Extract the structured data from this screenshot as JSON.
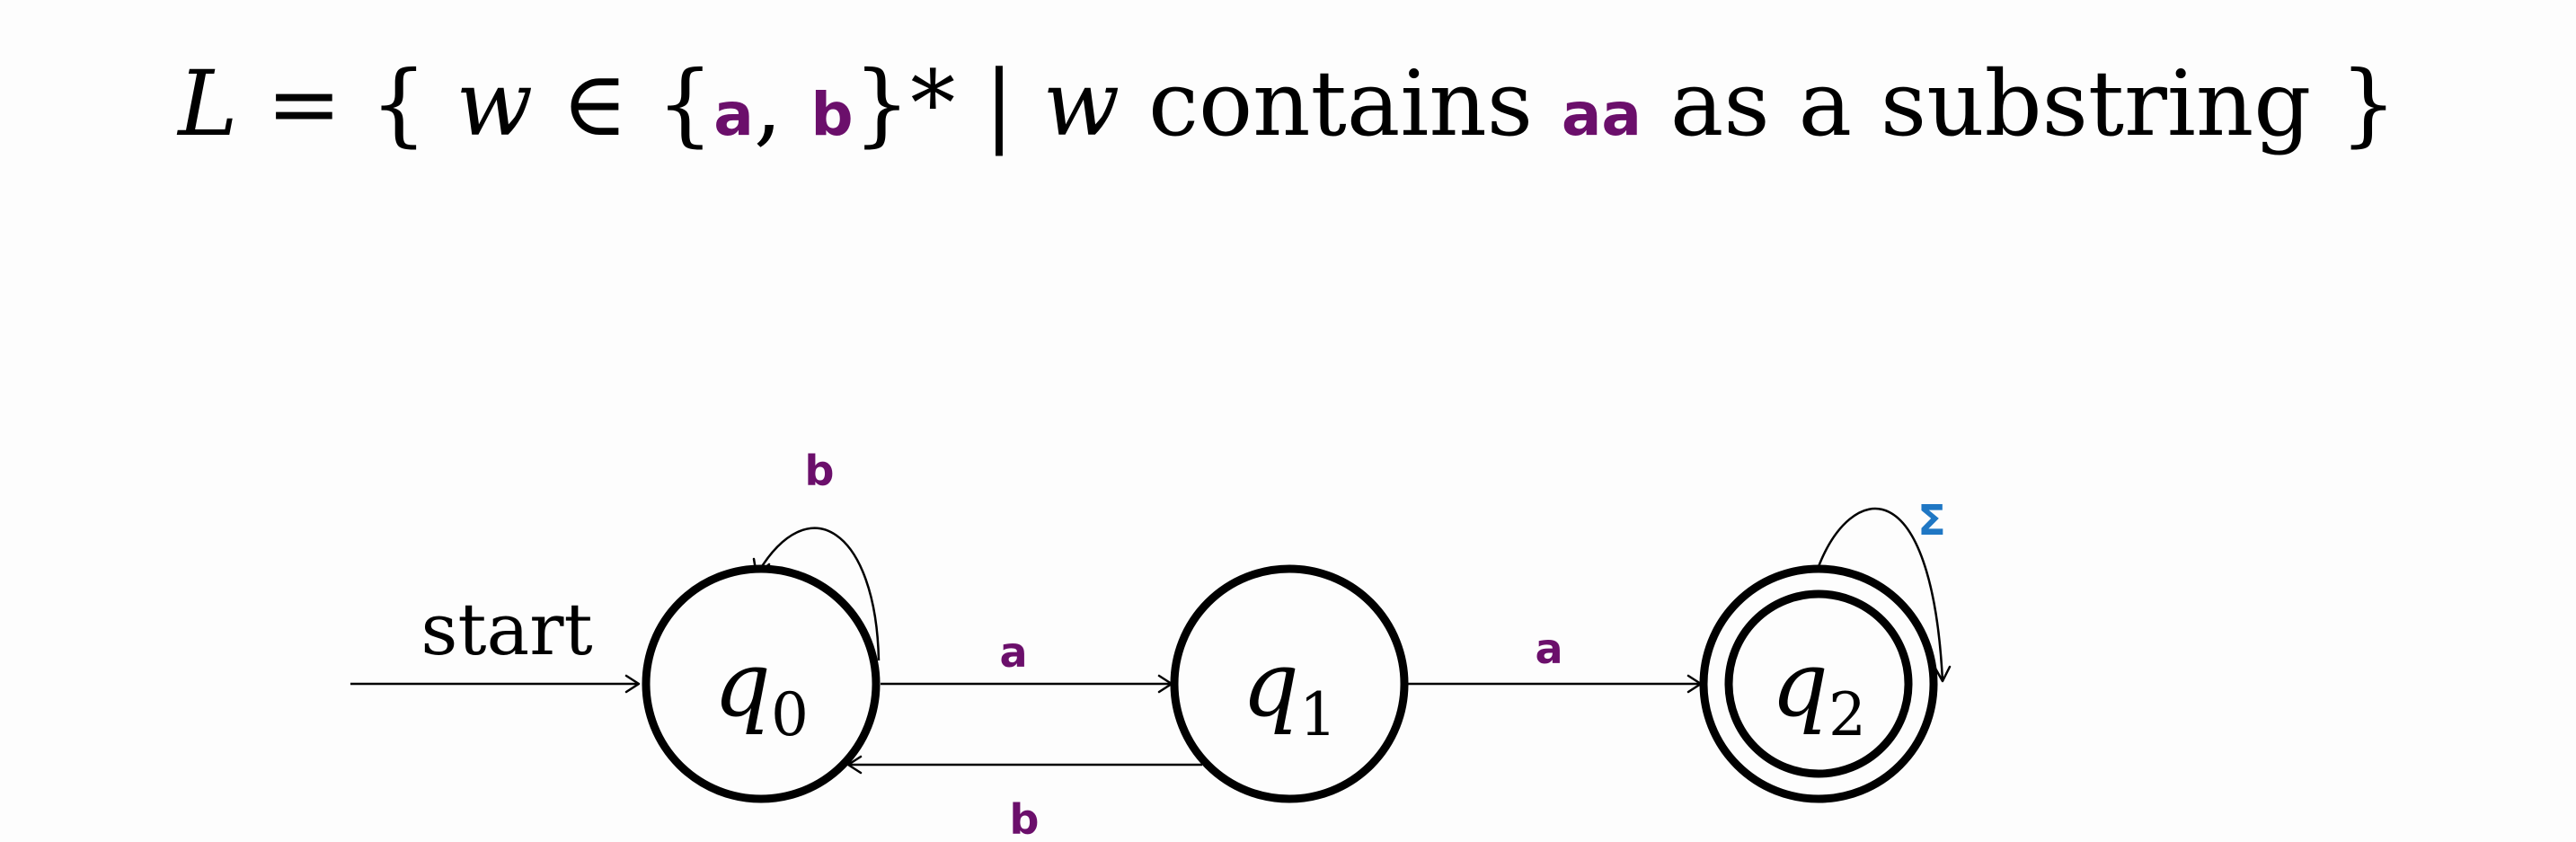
{
  "formula": {
    "parts": [
      {
        "text": "L",
        "italic": true,
        "mono": false
      },
      {
        "text": " = { ",
        "italic": false,
        "mono": false
      },
      {
        "text": "w",
        "italic": true,
        "mono": false
      },
      {
        "text": " ∈ {",
        "italic": false,
        "mono": false
      },
      {
        "text": "a",
        "italic": false,
        "mono": true
      },
      {
        "text": ", ",
        "italic": false,
        "mono": false
      },
      {
        "text": "b",
        "italic": false,
        "mono": true
      },
      {
        "text": "}* | ",
        "italic": false,
        "mono": false
      },
      {
        "text": "w",
        "italic": true,
        "mono": false
      },
      {
        "text": " contains ",
        "italic": false,
        "mono": false
      },
      {
        "text": "aa",
        "italic": false,
        "mono": true
      },
      {
        "text": " as a substring }",
        "italic": false,
        "mono": false
      }
    ]
  },
  "colors": {
    "text": "#000000",
    "symbol": "#6b0f6b",
    "sigma": "#1f77c4",
    "background": "#fdfdfd"
  },
  "automaton": {
    "start_label": "start",
    "states": [
      {
        "id": "q0",
        "base": "q",
        "sub": "0",
        "accepting": false,
        "start": true
      },
      {
        "id": "q1",
        "base": "q",
        "sub": "1",
        "accepting": false,
        "start": false
      },
      {
        "id": "q2",
        "base": "q",
        "sub": "2",
        "accepting": true,
        "start": false
      }
    ],
    "transitions": [
      {
        "from": "q0",
        "to": "q0",
        "label": "b",
        "color": "symbol"
      },
      {
        "from": "q0",
        "to": "q1",
        "label": "a",
        "color": "symbol"
      },
      {
        "from": "q1",
        "to": "q0",
        "label": "b",
        "color": "symbol"
      },
      {
        "from": "q1",
        "to": "q2",
        "label": "a",
        "color": "symbol"
      },
      {
        "from": "q2",
        "to": "q2",
        "label": "Σ",
        "color": "sigma"
      }
    ]
  }
}
